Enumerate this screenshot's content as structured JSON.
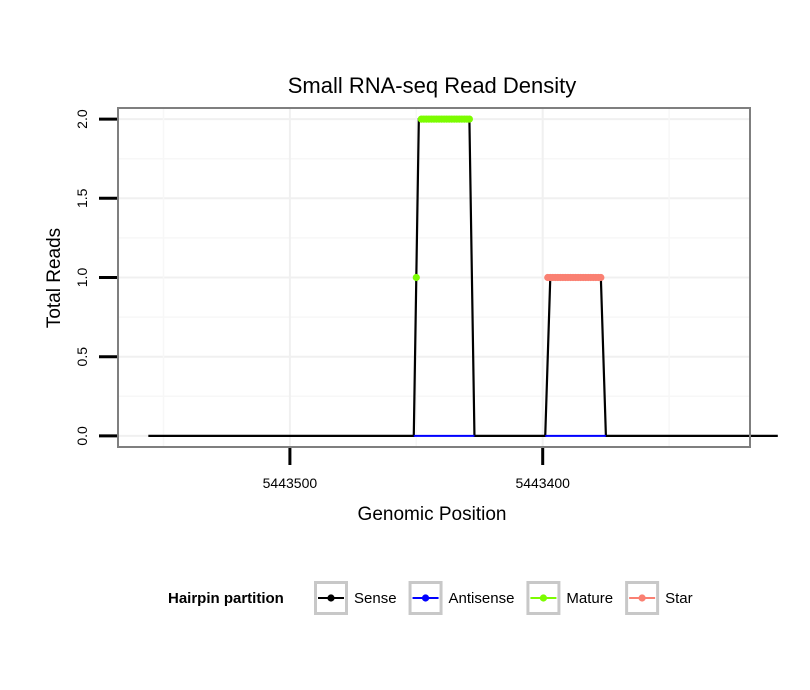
{
  "chart_data": {
    "type": "line",
    "title": "Small RNA-seq Read Density",
    "xlabel": "Genomic Position",
    "ylabel": "Total Reads",
    "xlim": [
      5443568,
      5443318
    ],
    "ylim": [
      -0.07,
      2.07
    ],
    "x_reversed": true,
    "x_ticks": [
      {
        "value": 5443500,
        "label": "5443500"
      },
      {
        "value": 5443400,
        "label": "5443400"
      }
    ],
    "y_ticks": [
      {
        "value": 0.0,
        "label": "0.0"
      },
      {
        "value": 0.5,
        "label": "0.5"
      },
      {
        "value": 1.0,
        "label": "1.0"
      },
      {
        "value": 1.5,
        "label": "1.5"
      },
      {
        "value": 2.0,
        "label": "2.0"
      }
    ],
    "grid": true,
    "legend": {
      "title": "Hairpin partition",
      "position": "bottom",
      "entries": [
        "Sense",
        "Antisense",
        "Mature",
        "Star"
      ]
    },
    "series": [
      {
        "name": "Sense",
        "color": "#000000",
        "x": [
          5443556,
          5443451,
          5443449,
          5443429,
          5443427,
          5443399,
          5443397,
          5443377,
          5443375,
          5443307
        ],
        "y": [
          0,
          0,
          2,
          2,
          0,
          0,
          1,
          1,
          0,
          0
        ]
      },
      {
        "name": "Antisense",
        "color": "#0000ff",
        "x": [
          5443451,
          5443427,
          5443399,
          5443375
        ],
        "y": [
          0,
          0,
          0,
          0
        ]
      },
      {
        "name": "Mature",
        "color": "#7cfc00",
        "x": [
          5443450,
          5443448,
          5443447,
          5443446,
          5443445,
          5443444,
          5443443,
          5443442,
          5443441,
          5443440,
          5443439,
          5443438,
          5443437,
          5443436,
          5443435,
          5443434,
          5443433,
          5443432,
          5443431,
          5443430,
          5443429
        ],
        "y": [
          1,
          2,
          2,
          2,
          2,
          2,
          2,
          2,
          2,
          2,
          2,
          2,
          2,
          2,
          2,
          2,
          2,
          2,
          2,
          2,
          2
        ]
      },
      {
        "name": "Star",
        "color": "#fa8072",
        "x": [
          5443398,
          5443397,
          5443396,
          5443395,
          5443394,
          5443393,
          5443392,
          5443391,
          5443390,
          5443389,
          5443388,
          5443387,
          5443386,
          5443385,
          5443384,
          5443383,
          5443382,
          5443381,
          5443380,
          5443379,
          5443378,
          5443377
        ],
        "y": [
          1,
          1,
          1,
          1,
          1,
          1,
          1,
          1,
          1,
          1,
          1,
          1,
          1,
          1,
          1,
          1,
          1,
          1,
          1,
          1,
          1,
          1
        ]
      }
    ]
  }
}
